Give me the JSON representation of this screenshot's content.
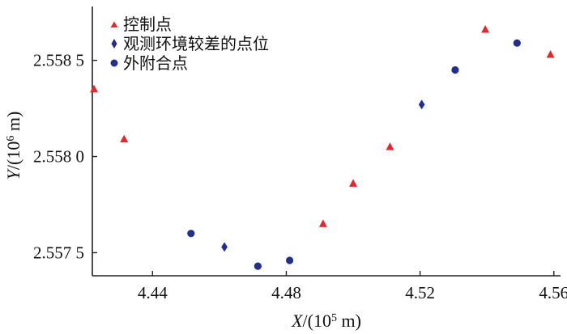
{
  "chart_data": {
    "type": "scatter",
    "xlabel_var": "X",
    "xlabel_unit_pre": "/(10",
    "xlabel_exp": "5",
    "xlabel_unit_post": " m)",
    "ylabel_var": "Y",
    "ylabel_unit_pre": "/(10",
    "ylabel_exp": "6",
    "ylabel_unit_post": " m)",
    "xlim": [
      4.422,
      4.562
    ],
    "ylim": [
      2.55738,
      2.55878
    ],
    "xticks": [
      4.44,
      4.48,
      4.52,
      4.56
    ],
    "xtick_labels": [
      "4.44",
      "4.48",
      "4.52",
      "4.56"
    ],
    "yticks": [
      2.5575,
      2.558,
      2.5585
    ],
    "ytick_labels": [
      "2.557 5",
      "2.558 0",
      "2.558 5"
    ],
    "grid": false,
    "legend_position": "top-left",
    "series": [
      {
        "name": "控制点",
        "marker": "triangle",
        "color": "#e0282e",
        "points": [
          [
            4.4225,
            2.55835
          ],
          [
            4.4315,
            2.55809
          ],
          [
            4.491,
            2.55765
          ],
          [
            4.5,
            2.55786
          ],
          [
            4.511,
            2.55805
          ],
          [
            4.5395,
            2.55866
          ],
          [
            4.559,
            2.55853
          ]
        ]
      },
      {
        "name": "观测环境较差的点位",
        "marker": "diamond",
        "color": "#232f8c",
        "points": [
          [
            4.4615,
            2.55753
          ],
          [
            4.5205,
            2.55827
          ]
        ]
      },
      {
        "name": "外附合点",
        "marker": "circle",
        "color": "#232f8c",
        "points": [
          [
            4.4515,
            2.5576
          ],
          [
            4.4715,
            2.55743
          ],
          [
            4.481,
            2.55746
          ],
          [
            4.5305,
            2.55845
          ],
          [
            4.549,
            2.55859
          ]
        ]
      }
    ]
  }
}
